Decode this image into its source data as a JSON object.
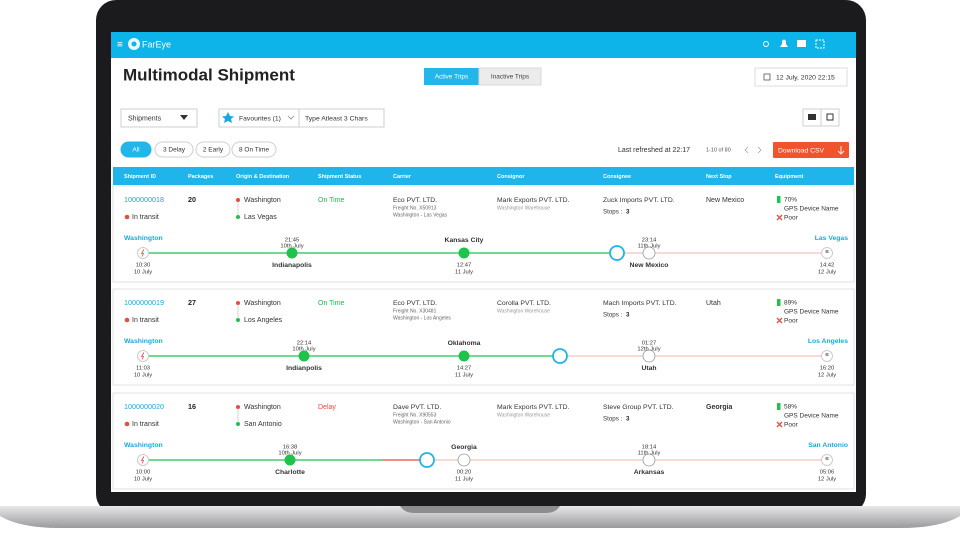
{
  "header": {
    "logo": "FarEye"
  },
  "title": "Multimodal Shipment",
  "tabs": [
    "Active Trips",
    "Inactive Trips"
  ],
  "datetime": "12 July, 2020 22:15",
  "filters": {
    "dropdown": "Shipments",
    "favourites": "Favourites (1)",
    "search_placeholder": "Type Atleast 3 Chars"
  },
  "chips": [
    "All",
    "3 Delay",
    "2 Early",
    "8 On Time"
  ],
  "last_refreshed": "Last refreshed at 22:17",
  "pagination": "1-10 of 80",
  "download_button": "Download CSV",
  "columns": [
    "Shipment ID",
    "Packages",
    "Origin & Destination",
    "Shipment Status",
    "Carrier",
    "Consignor",
    "Consignee",
    "Next Stop",
    "Equipment"
  ],
  "shipments": [
    {
      "id": "1000000018",
      "packages": 20,
      "transit_status": "In transit",
      "origin": "Washington",
      "destination": "Las Vegas",
      "status": "On Time",
      "status_color": "#1db954",
      "carrier": {
        "name": "Eco PVT. LTD.",
        "freight": "Freight No. X50913",
        "route": "Washington - Las Vegas"
      },
      "consignor": {
        "name": "Mark Exports PVT. LTD.",
        "warehouse": "Washington Warehouse"
      },
      "consignee": {
        "name": "Zuck Imports PVT. LTD.",
        "stops_label": "Stops :",
        "stops": 3
      },
      "next_stop": "New Mexico",
      "equipment": {
        "battery": "70%",
        "device": "GPS Device Name",
        "signal": "Poor"
      },
      "timeline": {
        "start": {
          "city": "Washington",
          "time": "10:30",
          "date": "10 July"
        },
        "end": {
          "city": "Las Vegas",
          "time": "14:42",
          "date": "12 July"
        },
        "stops": [
          {
            "name": "Indianapolis",
            "time": "21:45",
            "date": "10th July",
            "state": "done"
          },
          {
            "name": "Kansas City",
            "time": "12:47",
            "date": "11 July",
            "state": "done"
          },
          {
            "name": "New Mexico",
            "time": "23:14",
            "date": "11th July",
            "state": "pending"
          }
        ]
      }
    },
    {
      "id": "1000000019",
      "packages": 27,
      "transit_status": "In transit",
      "origin": "Washington",
      "destination": "Los Angeles",
      "status": "On Time",
      "status_color": "#1db954",
      "carrier": {
        "name": "Eco PVT. LTD.",
        "freight": "Freight No. X30481",
        "route": "Washington - Los Angeles"
      },
      "consignor": {
        "name": "Corolla PVT. LTD.",
        "warehouse": "Washington Warehouse"
      },
      "consignee": {
        "name": "Mach Imports PVT. LTD.",
        "stops_label": "Stops :",
        "stops": 3
      },
      "next_stop": "Utah",
      "equipment": {
        "battery": "89%",
        "device": "GPS Device Name",
        "signal": "Poor"
      },
      "timeline": {
        "start": {
          "city": "Washington",
          "time": "11:03",
          "date": "10 July"
        },
        "end": {
          "city": "Los Angeles",
          "time": "16:20",
          "date": "12 July"
        },
        "stops": [
          {
            "name": "Indianpolis",
            "time": "22:14",
            "date": "10th July",
            "state": "done"
          },
          {
            "name": "Oklahoma",
            "time": "14:27",
            "date": "11 July",
            "state": "done"
          },
          {
            "name": "Utah",
            "time": "01:27",
            "date": "12th July",
            "state": "pending"
          }
        ]
      }
    },
    {
      "id": "1000000020",
      "packages": 16,
      "transit_status": "In transit",
      "origin": "Washington",
      "destination": "San Antonio",
      "status": "Delay",
      "status_color": "#e74c3c",
      "delay_color": "#e74c3c",
      "carrier": {
        "name": "Dave PVT. LTD.",
        "freight": "Freight No. X90553",
        "route": "Washington - San Antonio"
      },
      "consignor": {
        "name": "Mark Exports PVT. LTD.",
        "warehouse": "Washington Warehouse"
      },
      "consignee": {
        "name": "Steve Group PVT. LTD.",
        "stops_label": "Stops :",
        "stops": 3
      },
      "next_stop": "Georgia",
      "equipment": {
        "battery": "58%",
        "device": "GPS Device Name",
        "signal": "Poor"
      },
      "timeline": {
        "start": {
          "city": "Washington",
          "time": "10:00",
          "date": "10 July"
        },
        "end": {
          "city": "San Antonio",
          "time": "05:06",
          "date": "12 July"
        },
        "stops": [
          {
            "name": "Charlotte",
            "time": "16:38",
            "date": "10th July",
            "state": "done"
          },
          {
            "name": "Georgia",
            "time": "00:20",
            "date": "11 July",
            "state": "pending"
          },
          {
            "name": "Arkansas",
            "time": "18:14",
            "date": "11th July",
            "state": "pending"
          }
        ]
      }
    }
  ]
}
